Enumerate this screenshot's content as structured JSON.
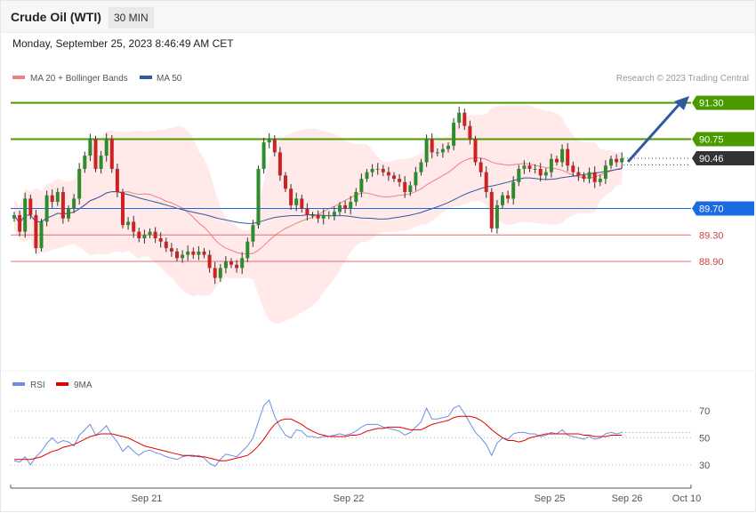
{
  "header": {
    "title": "Crude Oil (WTI)",
    "timeframe": "30 MIN",
    "datetime": "Monday, September 25, 2023 8:46:49 AM CET"
  },
  "legend": {
    "ma20_bb": "MA 20 + Bollinger Bands",
    "ma50": "MA 50",
    "copyright": "Research © 2023 Trading Central",
    "rsi": "RSI",
    "ma9": "9MA"
  },
  "colors": {
    "ma20": "#f08080",
    "ma50": "#2f5a9e",
    "bull": "#2e8b2e",
    "bear": "#cc2222",
    "green_level": "#4a9a00",
    "blue_level": "#1a6ae0",
    "red_level": "#e07070",
    "current": "#333333",
    "rsi": "#6a8fe0",
    "rsi_ma": "#e00000",
    "band": "#ffe2e2"
  },
  "chart_data": [
    {
      "type": "candlestick",
      "ylim": [
        87.3,
        91.55
      ],
      "x_ticks": [
        "Sep 21",
        "Sep 22",
        "Sep 25",
        "Sep 26",
        "Oct 10"
      ],
      "levels": [
        {
          "value": 91.3,
          "label": "91.30",
          "kind": "resistance"
        },
        {
          "value": 90.75,
          "label": "90.75",
          "kind": "resistance"
        },
        {
          "value": 90.46,
          "label": "90.46",
          "kind": "current"
        },
        {
          "value": 89.7,
          "label": "89.70",
          "kind": "pivot"
        },
        {
          "value": 89.3,
          "label": "89.30",
          "kind": "support"
        },
        {
          "value": 88.9,
          "label": "88.90",
          "kind": "support"
        }
      ],
      "close": [
        89.6,
        89.35,
        89.85,
        89.6,
        89.1,
        89.5,
        89.9,
        89.8,
        89.95,
        89.55,
        89.7,
        89.85,
        90.3,
        90.5,
        90.75,
        90.3,
        90.5,
        90.75,
        90.3,
        89.95,
        89.45,
        89.5,
        89.35,
        89.25,
        89.3,
        89.35,
        89.25,
        89.2,
        89.1,
        89.05,
        88.95,
        89.0,
        89.05,
        89.0,
        89.05,
        89.0,
        88.8,
        88.65,
        88.8,
        88.9,
        88.85,
        88.8,
        88.95,
        89.2,
        89.45,
        90.3,
        90.7,
        90.75,
        90.55,
        90.2,
        90.0,
        89.75,
        89.85,
        89.7,
        89.6,
        89.6,
        89.55,
        89.6,
        89.6,
        89.65,
        89.75,
        89.7,
        89.8,
        89.95,
        90.15,
        90.25,
        90.3,
        90.3,
        90.25,
        90.2,
        90.15,
        90.1,
        89.95,
        90.05,
        90.25,
        90.4,
        90.75,
        90.55,
        90.55,
        90.6,
        90.65,
        91.0,
        91.15,
        90.95,
        90.75,
        90.4,
        90.25,
        89.95,
        89.4,
        89.75,
        89.9,
        89.85,
        90.1,
        90.3,
        90.35,
        90.3,
        90.3,
        90.2,
        90.25,
        90.45,
        90.4,
        90.6,
        90.35,
        90.25,
        90.2,
        90.15,
        90.25,
        90.1,
        90.15,
        90.35,
        90.45,
        90.4,
        90.46
      ],
      "rsi_ylim": [
        20,
        80
      ],
      "rsi_ticks": [
        70,
        50,
        30
      ],
      "rsi": [
        33,
        32,
        36,
        30,
        36,
        40,
        46,
        50,
        46,
        48,
        47,
        44,
        52,
        56,
        60,
        52,
        55,
        59,
        52,
        47,
        40,
        44,
        40,
        37,
        40,
        41,
        39,
        38,
        36,
        35,
        34,
        36,
        37,
        36,
        37,
        35,
        31,
        29,
        34,
        38,
        37,
        36,
        40,
        44,
        50,
        62,
        74,
        78,
        66,
        58,
        52,
        50,
        56,
        55,
        51,
        51,
        50,
        51,
        51,
        52,
        53,
        52,
        53,
        55,
        58,
        60,
        60,
        60,
        58,
        57,
        56,
        55,
        52,
        54,
        58,
        62,
        72,
        64,
        64,
        65,
        66,
        72,
        74,
        68,
        61,
        54,
        50,
        45,
        37,
        46,
        50,
        49,
        53,
        54,
        54,
        53,
        53,
        51,
        52,
        54,
        53,
        56,
        52,
        51,
        50,
        49,
        51,
        49,
        50,
        53,
        54,
        53,
        54
      ],
      "rsi_ma": [
        34,
        34,
        34,
        34,
        35,
        36,
        38,
        40,
        41,
        43,
        44,
        45,
        47,
        49,
        51,
        52,
        53,
        53,
        53,
        52,
        51,
        50,
        48,
        46,
        44,
        43,
        42,
        41,
        40,
        39,
        38,
        37,
        37,
        37,
        36,
        36,
        35,
        34,
        33,
        33,
        34,
        35,
        36,
        37,
        40,
        44,
        49,
        55,
        60,
        63,
        64,
        64,
        62,
        60,
        57,
        55,
        53,
        52,
        51,
        51,
        51,
        51,
        52,
        52,
        53,
        55,
        56,
        57,
        57,
        58,
        58,
        58,
        57,
        56,
        56,
        56,
        58,
        60,
        61,
        62,
        63,
        65,
        66,
        66,
        66,
        65,
        63,
        60,
        56,
        53,
        50,
        48,
        48,
        47,
        48,
        50,
        51,
        52,
        53,
        53,
        53,
        53,
        53,
        53,
        53,
        52,
        52,
        51,
        51,
        51,
        52,
        52,
        52
      ]
    }
  ]
}
